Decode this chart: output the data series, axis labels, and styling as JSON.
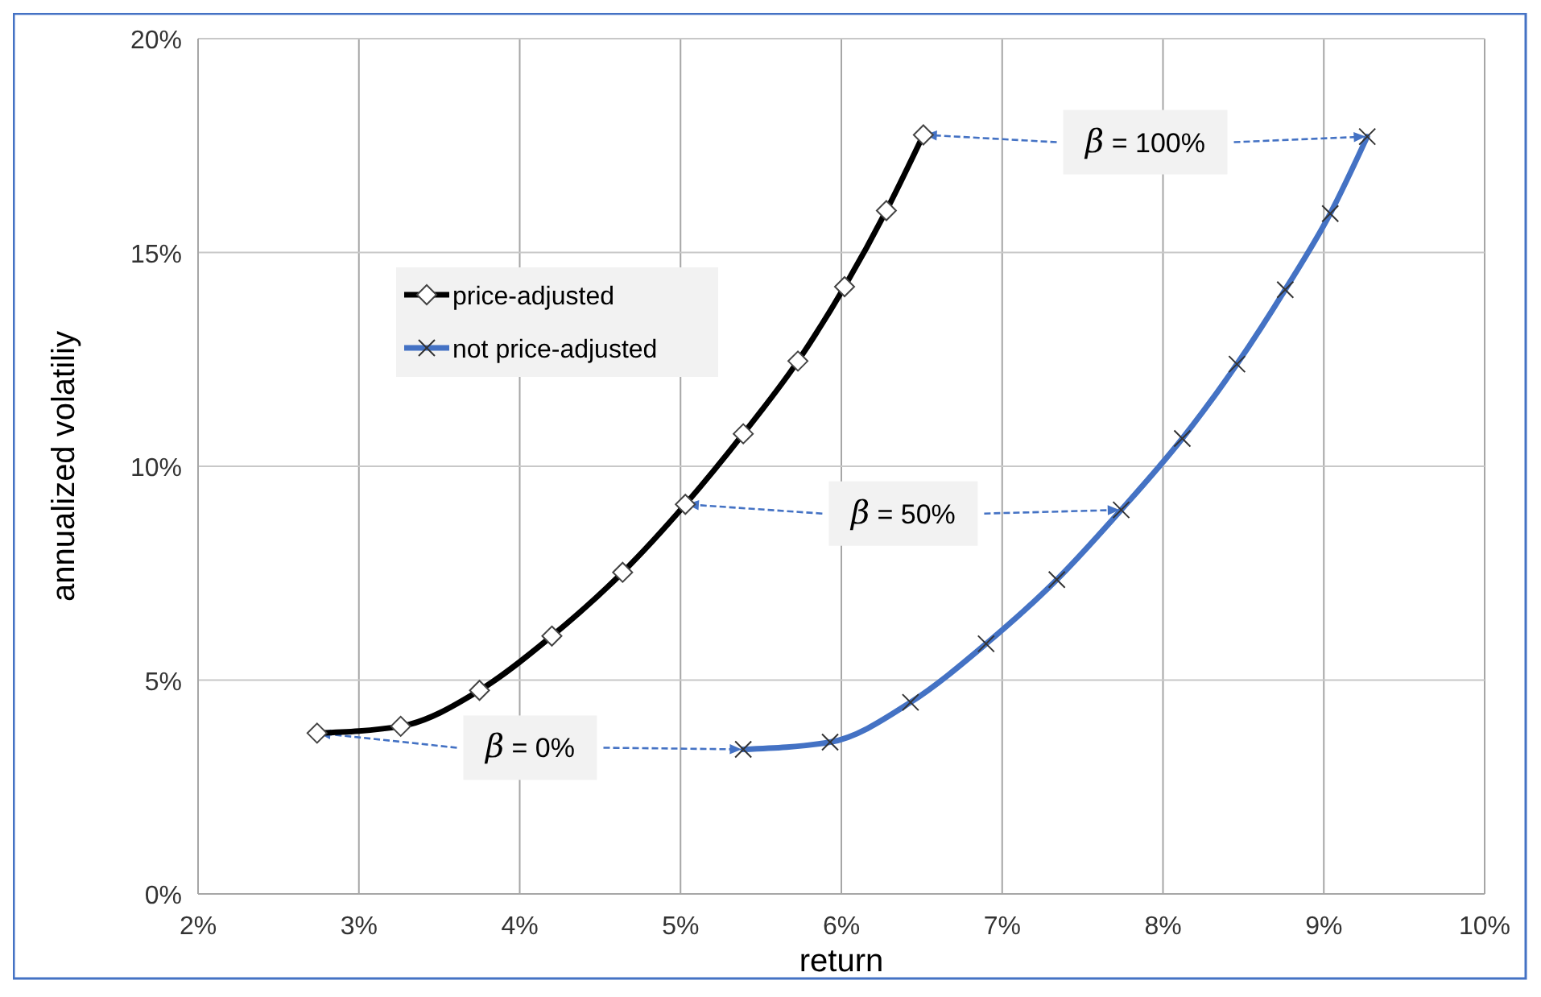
{
  "chart_data": {
    "type": "line",
    "xlabel": "return",
    "ylabel": "annualized volatiliy",
    "xlim": [
      2,
      10
    ],
    "xticks": [
      {
        "value": 2,
        "label": "2%"
      },
      {
        "value": 3,
        "label": "3%"
      },
      {
        "value": 4,
        "label": "4%"
      },
      {
        "value": 5,
        "label": "5%"
      },
      {
        "value": 6,
        "label": "6%"
      },
      {
        "value": 7,
        "label": "7%"
      },
      {
        "value": 8,
        "label": "8%"
      },
      {
        "value": 9,
        "label": "9%"
      },
      {
        "value": 10,
        "label": "10%"
      }
    ],
    "ylim": [
      0,
      20
    ],
    "yticks": [
      {
        "value": 0,
        "label": "0%"
      },
      {
        "value": 5,
        "label": "5%"
      },
      {
        "value": 10,
        "label": "10%"
      },
      {
        "value": 15,
        "label": "15%"
      },
      {
        "value": 20,
        "label": "20%"
      }
    ],
    "grid": true,
    "legend": "top left",
    "line_style": "solid",
    "series": [
      {
        "name": "price-adjusted",
        "color": "#000000",
        "marker": "diamond",
        "x": [
          2.74,
          3.26,
          3.75,
          4.2,
          4.64,
          5.03,
          5.39,
          5.73,
          6.02,
          6.28,
          6.51
        ],
        "values": [
          3.76,
          3.92,
          4.76,
          6.03,
          7.52,
          9.11,
          10.76,
          12.46,
          14.2,
          15.98,
          17.75
        ]
      },
      {
        "name": "not price-adjusted",
        "color": "#4472c4",
        "marker": "cross",
        "x": [
          5.39,
          5.93,
          6.43,
          6.9,
          7.34,
          7.74,
          8.12,
          8.46,
          8.76,
          9.04,
          9.27
        ],
        "values": [
          3.38,
          3.55,
          4.48,
          5.85,
          7.35,
          8.98,
          10.65,
          12.39,
          14.13,
          15.91,
          17.71
        ]
      }
    ],
    "annotations": [
      {
        "text": "β = 0%",
        "x": 2.74,
        "y": 3.76
      },
      {
        "text": "β = 50%",
        "x": 7.74,
        "y": 8.98
      },
      "β = 100%"
    ]
  }
}
